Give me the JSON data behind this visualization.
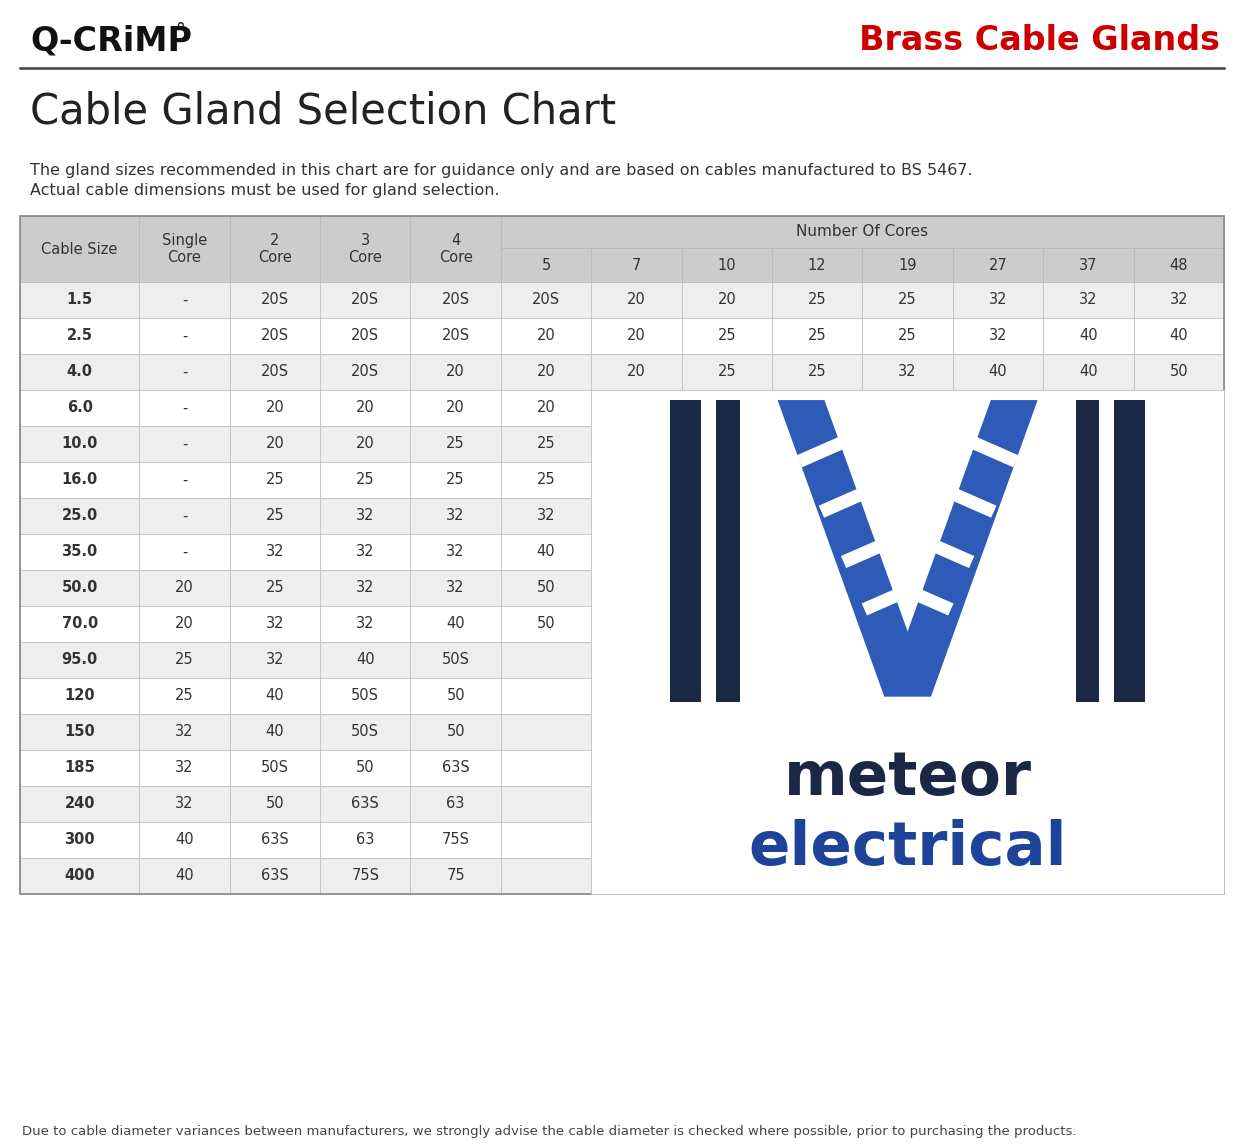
{
  "title": "Cable Gland Selection Chart",
  "header_brand": "Q-CRiMP°",
  "header_product": "Brass Cable Glands",
  "subtitle1": "The gland sizes recommended in this chart are for guidance only and are based on cables manufactured to BS 5467.",
  "subtitle2": "Actual cable dimensions must be used for gland selection.",
  "footer": "Due to cable diameter variances between manufacturers, we strongly advise the cable diameter is checked where possible, prior to purchasing the products.",
  "col_headers": [
    "Cable Size",
    "Single\nCore",
    "2\nCore",
    "3\nCore",
    "4\nCore",
    "5",
    "7",
    "10",
    "12",
    "19",
    "27",
    "37",
    "48"
  ],
  "number_of_cores_label": "Number Of Cores",
  "rows": [
    [
      "1.5",
      "-",
      "20S",
      "20S",
      "20S",
      "20S",
      "20",
      "20",
      "25",
      "25",
      "32",
      "32",
      "32"
    ],
    [
      "2.5",
      "-",
      "20S",
      "20S",
      "20S",
      "20",
      "20",
      "25",
      "25",
      "25",
      "32",
      "40",
      "40"
    ],
    [
      "4.0",
      "-",
      "20S",
      "20S",
      "20",
      "20",
      "20",
      "25",
      "25",
      "32",
      "40",
      "40",
      "50"
    ],
    [
      "6.0",
      "-",
      "20",
      "20",
      "20",
      "20",
      "",
      "",
      "",
      "",
      "",
      "",
      ""
    ],
    [
      "10.0",
      "-",
      "20",
      "20",
      "25",
      "25",
      "",
      "",
      "",
      "",
      "",
      "",
      ""
    ],
    [
      "16.0",
      "-",
      "25",
      "25",
      "25",
      "25",
      "",
      "",
      "",
      "",
      "",
      "",
      ""
    ],
    [
      "25.0",
      "-",
      "25",
      "32",
      "32",
      "32",
      "",
      "",
      "",
      "",
      "",
      "",
      ""
    ],
    [
      "35.0",
      "-",
      "32",
      "32",
      "32",
      "40",
      "",
      "",
      "",
      "",
      "",
      "",
      ""
    ],
    [
      "50.0",
      "20",
      "25",
      "32",
      "32",
      "50",
      "",
      "",
      "",
      "",
      "",
      "",
      ""
    ],
    [
      "70.0",
      "20",
      "32",
      "32",
      "40",
      "50",
      "",
      "",
      "",
      "",
      "",
      "",
      ""
    ],
    [
      "95.0",
      "25",
      "32",
      "40",
      "50S",
      "",
      "",
      "",
      "",
      "",
      "",
      "",
      ""
    ],
    [
      "120",
      "25",
      "40",
      "50S",
      "50",
      "",
      "",
      "",
      "",
      "",
      "",
      "",
      ""
    ],
    [
      "150",
      "32",
      "40",
      "50S",
      "50",
      "",
      "",
      "",
      "",
      "",
      "",
      "",
      ""
    ],
    [
      "185",
      "32",
      "50S",
      "50",
      "63S",
      "",
      "",
      "",
      "",
      "",
      "",
      "",
      ""
    ],
    [
      "240",
      "32",
      "50",
      "63S",
      "63",
      "",
      "",
      "",
      "",
      "",
      "",
      "",
      ""
    ],
    [
      "300",
      "40",
      "63S",
      "63",
      "75S",
      "",
      "",
      "",
      "",
      "",
      "",
      "",
      ""
    ],
    [
      "400",
      "40",
      "63S",
      "75S",
      "75",
      "",
      "",
      "",
      "",
      "",
      "",
      "",
      ""
    ]
  ],
  "bg_color": "#ffffff",
  "header_bg": "#cccccc",
  "row_odd_bg": "#eeeeee",
  "row_even_bg": "#ffffff",
  "header_text_color": "#333333",
  "cell_text_color": "#333333",
  "brand_color": "#111111",
  "product_color": "#cc0000",
  "table_border_color": "#bbbbbb",
  "dark_navy": "#1a2845",
  "mid_blue": "#1e4499",
  "light_blue": "#2e5bb8"
}
